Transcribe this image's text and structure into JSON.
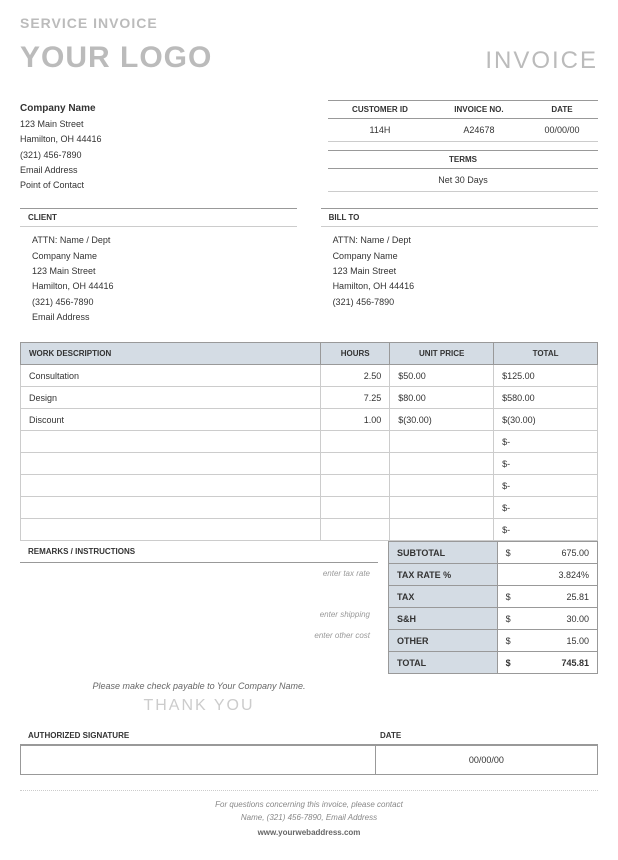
{
  "section_title": "SERVICE INVOICE",
  "logo_text": "YOUR LOGO",
  "invoice_label": "INVOICE",
  "company": {
    "name": "Company Name",
    "street": "123 Main Street",
    "city": "Hamilton, OH 44416",
    "phone": "(321) 456-7890",
    "email": "Email Address",
    "contact": "Point of Contact"
  },
  "meta": {
    "customer_id_label": "CUSTOMER ID",
    "invoice_no_label": "INVOICE NO.",
    "date_label": "DATE",
    "customer_id": "114H",
    "invoice_no": "A24678",
    "date": "00/00/00",
    "terms_label": "TERMS",
    "terms_value": "Net 30 Days"
  },
  "client": {
    "label": "CLIENT",
    "attn": "ATTN: Name / Dept",
    "company": "Company Name",
    "street": "123 Main Street",
    "city": "Hamilton, OH 44416",
    "phone": "(321) 456-7890",
    "email": "Email Address"
  },
  "billto": {
    "label": "BILL TO",
    "attn": "ATTN: Name / Dept",
    "company": "Company Name",
    "street": "123 Main Street",
    "city": "Hamilton, OH 44416",
    "phone": "(321) 456-7890"
  },
  "work": {
    "headers": {
      "desc": "WORK DESCRIPTION",
      "hours": "HOURS",
      "price": "UNIT PRICE",
      "total": "TOTAL"
    },
    "rows": [
      {
        "desc": "Consultation",
        "hours": "2.50",
        "price": "50.00",
        "total": "125.00"
      },
      {
        "desc": "Design",
        "hours": "7.25",
        "price": "80.00",
        "total": "580.00"
      },
      {
        "desc": "Discount",
        "hours": "1.00",
        "price": "(30.00)",
        "total": "(30.00)"
      },
      {
        "desc": "",
        "hours": "",
        "price": "",
        "total": "-"
      },
      {
        "desc": "",
        "hours": "",
        "price": "",
        "total": "-"
      },
      {
        "desc": "",
        "hours": "",
        "price": "",
        "total": "-"
      },
      {
        "desc": "",
        "hours": "",
        "price": "",
        "total": "-"
      },
      {
        "desc": "",
        "hours": "",
        "price": "",
        "total": "-"
      }
    ],
    "currency": "$"
  },
  "remarks": {
    "label": "REMARKS / INSTRUCTIONS",
    "hint_tax": "enter tax rate",
    "hint_ship": "enter shipping",
    "hint_other": "enter other cost",
    "payable": "Please make check payable to  Your Company Name.",
    "thank_you": "THANK YOU"
  },
  "totals": {
    "subtotal_label": "SUBTOTAL",
    "subtotal": "675.00",
    "taxrate_label": "TAX RATE %",
    "taxrate": "3.824%",
    "tax_label": "TAX",
    "tax": "25.81",
    "sh_label": "S&H",
    "sh": "30.00",
    "other_label": "OTHER",
    "other": "15.00",
    "total_label": "TOTAL",
    "total": "745.81"
  },
  "signature": {
    "auth_label": "AUTHORIZED SIGNATURE",
    "date_label": "DATE",
    "date_value": "00/00/00"
  },
  "footer": {
    "line1": "For questions concerning this invoice, please contact",
    "line2": "Name, (321) 456-7890, Email Address",
    "web": "www.yourwebaddress.com"
  },
  "styling": {
    "header_bg": "#d4dce4",
    "border_color": "#999999",
    "light_border": "#cccccc",
    "muted_text": "#bbbbbb",
    "body_fontsize": 10,
    "header_fontsize": 8
  }
}
